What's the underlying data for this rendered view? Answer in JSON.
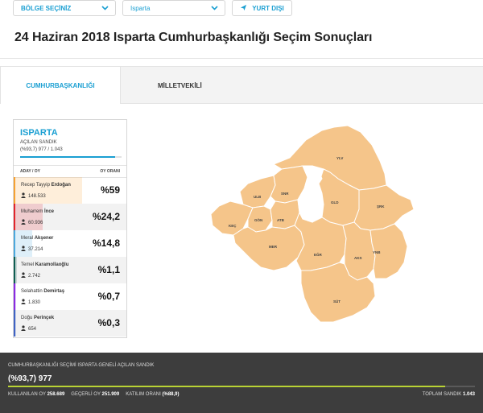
{
  "topbar": {
    "region_select": "BÖLGE SEÇİNİZ",
    "city_select": "Isparta",
    "abroad_button": "YURT DIŞI"
  },
  "page_title": "24 Haziran 2018 Isparta Cumhurbaşkanlığı Seçim Sonuçları",
  "tabs": [
    {
      "label": "CUMHURBAŞKANLIĞI",
      "active": true
    },
    {
      "label": "MİLLETVEKİLİ",
      "active": false
    }
  ],
  "summary_card": {
    "province": "ISPARTA",
    "ballot_label": "AÇILAN SANDIK",
    "ballot_value": "(%93,7) 977 / 1.043",
    "ballot_fraction": 0.937,
    "col_candidate": "ADAY / OY",
    "col_rate": "OY ORANI",
    "candidates": [
      {
        "first": "Recep Tayyip",
        "last": "Erdoğan",
        "votes": "148.533",
        "pct": "%59",
        "share": 59,
        "color": "#f7a130"
      },
      {
        "first": "Muharrem",
        "last": "İnce",
        "votes": "60.936",
        "pct": "%24,2",
        "share": 24.2,
        "color": "#e3242b"
      },
      {
        "first": "Meral",
        "last": "Akşener",
        "votes": "37.214",
        "pct": "%14,8",
        "share": 14.8,
        "color": "#4aa8de"
      },
      {
        "first": "Temel",
        "last": "Karamollaoğlu",
        "votes": "2.742",
        "pct": "%1,1",
        "share": 1.1,
        "color": "#0e5e52"
      },
      {
        "first": "Selahattin",
        "last": "Demirtaş",
        "votes": "1.830",
        "pct": "%0,7",
        "share": 0.7,
        "color": "#8a2be2"
      },
      {
        "first": "Doğu",
        "last": "Perinçek",
        "votes": "654",
        "pct": "%0,3",
        "share": 0.3,
        "color": "#3f63c4"
      }
    ]
  },
  "map": {
    "fill_color": "#f5c58a",
    "stroke_color": "#ffffff",
    "districts": [
      {
        "code": "YLV"
      },
      {
        "code": "ULB"
      },
      {
        "code": "SNR"
      },
      {
        "code": "GLD"
      },
      {
        "code": "ŞRK"
      },
      {
        "code": "KEÇ"
      },
      {
        "code": "GÖN"
      },
      {
        "code": "ATB"
      },
      {
        "code": "MER"
      },
      {
        "code": "EĞR"
      },
      {
        "code": "AKS"
      },
      {
        "code": "YNB"
      },
      {
        "code": "SÜT"
      }
    ]
  },
  "footer": {
    "heading": "CUMHURBAŞKANLIĞI SEÇİMİ ISPARTA GENELİ AÇILAN SANDIK",
    "ballot_value": "(%93,7) 977",
    "ballot_fraction": 0.937,
    "used_votes_label": "KULLANILAN OY",
    "used_votes": "258.689",
    "valid_votes_label": "GEÇERLİ OY",
    "valid_votes": "251.909",
    "turnout_label": "KATILIM ORANI",
    "turnout": "(%88,9)",
    "total_ballot_label": "TOPLAM SANDIK",
    "total_ballot": "1.043"
  }
}
